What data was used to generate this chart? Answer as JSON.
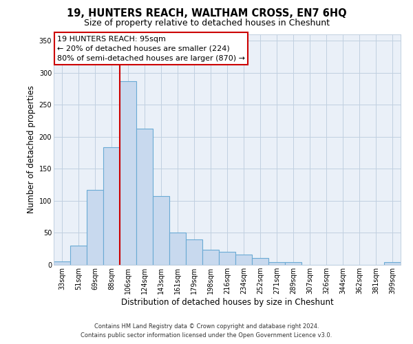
{
  "title": "19, HUNTERS REACH, WALTHAM CROSS, EN7 6HQ",
  "subtitle": "Size of property relative to detached houses in Cheshunt",
  "xlabel": "Distribution of detached houses by size in Cheshunt",
  "ylabel": "Number of detached properties",
  "bar_color": "#c8d9ee",
  "bar_edge_color": "#6aaad4",
  "background_color": "#ffffff",
  "plot_bg_color": "#eaf0f8",
  "grid_color": "#c0cfe0",
  "categories": [
    "33sqm",
    "51sqm",
    "69sqm",
    "88sqm",
    "106sqm",
    "124sqm",
    "143sqm",
    "161sqm",
    "179sqm",
    "198sqm",
    "216sqm",
    "234sqm",
    "252sqm",
    "271sqm",
    "289sqm",
    "307sqm",
    "326sqm",
    "344sqm",
    "362sqm",
    "381sqm",
    "399sqm"
  ],
  "values": [
    5,
    30,
    117,
    184,
    287,
    213,
    107,
    50,
    40,
    24,
    20,
    16,
    11,
    4,
    4,
    0,
    0,
    0,
    0,
    0,
    4
  ],
  "ylim": [
    0,
    360
  ],
  "yticks": [
    0,
    50,
    100,
    150,
    200,
    250,
    300,
    350
  ],
  "vline_position": 3.5,
  "vline_color": "#cc0000",
  "annotation_line1": "19 HUNTERS REACH: 95sqm",
  "annotation_line2": "← 20% of detached houses are smaller (224)",
  "annotation_line3": "80% of semi-detached houses are larger (870) →",
  "footer_line1": "Contains HM Land Registry data © Crown copyright and database right 2024.",
  "footer_line2": "Contains public sector information licensed under the Open Government Licence v3.0.",
  "title_fontsize": 10.5,
  "subtitle_fontsize": 9,
  "axis_label_fontsize": 8.5,
  "tick_fontsize": 7,
  "annotation_fontsize": 8,
  "footer_fontsize": 6
}
